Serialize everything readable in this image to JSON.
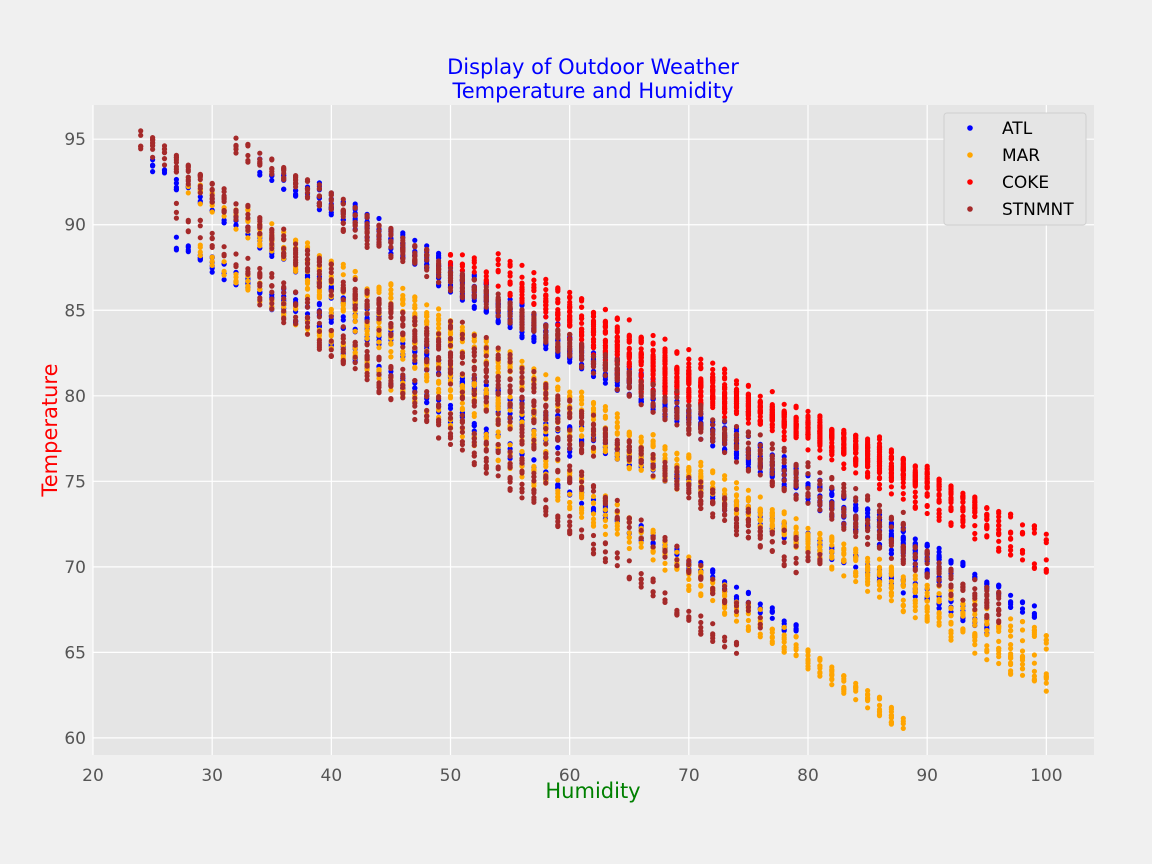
{
  "chart_data": {
    "type": "scatter",
    "title": "Display of Outdoor Weather\nTemperature and Humidity",
    "title_color": "#0000ff",
    "xlabel": "Humidity",
    "xlabel_color": "#008000",
    "ylabel": "Temperature",
    "ylabel_color": "#ff0000",
    "xlim": [
      20,
      104
    ],
    "ylim": [
      59,
      97
    ],
    "xticks": [
      20,
      30,
      40,
      50,
      60,
      70,
      80,
      90,
      100
    ],
    "yticks": [
      60,
      65,
      70,
      75,
      80,
      85,
      90,
      95
    ],
    "grid": true,
    "legend_position": "top-right",
    "plot_background": "#e5e5e5",
    "series": [
      {
        "name": "ATL",
        "color": "#0000ff",
        "bands": [
          {
            "x0": 25,
            "y0": 93.3,
            "x1": 60,
            "y1": 76.7,
            "step": 1,
            "jitter": 0.25
          },
          {
            "x0": 27,
            "y0": 89.0,
            "x1": 79,
            "y1": 66.3,
            "step": 1,
            "jitter": 0.25
          },
          {
            "x0": 34,
            "y0": 93.4,
            "x1": 91,
            "y1": 69.6,
            "step": 1,
            "jitter": 0.25
          },
          {
            "x0": 36,
            "y0": 85.9,
            "x1": 95,
            "y1": 66.6,
            "step": 1,
            "jitter": 0.25
          },
          {
            "x0": 39,
            "y0": 92.0,
            "x1": 99,
            "y1": 67.3,
            "step": 1,
            "jitter": 0.25
          },
          {
            "x0": 49,
            "y0": 86.6,
            "x1": 92,
            "y1": 70.0,
            "step": 1,
            "jitter": 0.25
          }
        ]
      },
      {
        "name": "MAR",
        "color": "#ffa500",
        "bands": [
          {
            "x0": 28,
            "y0": 92.3,
            "x1": 58,
            "y1": 77.2,
            "step": 1,
            "jitter": 0.3
          },
          {
            "x0": 29,
            "y0": 88.4,
            "x1": 88,
            "y1": 60.8,
            "step": 1,
            "jitter": 0.3
          },
          {
            "x0": 33,
            "y0": 90.4,
            "x1": 100,
            "y1": 63.0,
            "step": 1,
            "jitter": 0.3
          },
          {
            "x0": 38,
            "y0": 86.4,
            "x1": 87,
            "y1": 61.3,
            "step": 1,
            "jitter": 0.3
          },
          {
            "x0": 45,
            "y0": 86.1,
            "x1": 100,
            "y1": 63.9,
            "step": 1,
            "jitter": 0.3
          },
          {
            "x0": 50,
            "y0": 80.9,
            "x1": 100,
            "y1": 65.6,
            "step": 1,
            "jitter": 0.3
          }
        ]
      },
      {
        "name": "COKE",
        "color": "#ff0000",
        "bands": [
          {
            "x0": 50,
            "y0": 88.2,
            "x1": 100,
            "y1": 70.0,
            "step": 1,
            "jitter": 0.3
          },
          {
            "x0": 54,
            "y0": 87.8,
            "x1": 100,
            "y1": 71.5,
            "step": 1,
            "jitter": 0.3
          },
          {
            "x0": 56,
            "y0": 86.3,
            "x1": 96,
            "y1": 72.5,
            "step": 1,
            "jitter": 0.3
          },
          {
            "x0": 58,
            "y0": 85.0,
            "x1": 94,
            "y1": 73.5,
            "step": 1,
            "jitter": 0.3
          },
          {
            "x0": 60,
            "y0": 83.8,
            "x1": 92,
            "y1": 74.5,
            "step": 1,
            "jitter": 0.3
          },
          {
            "x0": 62,
            "y0": 82.6,
            "x1": 90,
            "y1": 75.3,
            "step": 1,
            "jitter": 0.3
          },
          {
            "x0": 64,
            "y0": 81.6,
            "x1": 88,
            "y1": 76.2,
            "step": 1,
            "jitter": 0.3
          },
          {
            "x0": 66,
            "y0": 80.6,
            "x1": 86,
            "y1": 77.0,
            "step": 1,
            "jitter": 0.3
          }
        ]
      },
      {
        "name": "STNMNT",
        "color": "#a52a2a",
        "bands": [
          {
            "x0": 24,
            "y0": 95.0,
            "x1": 62,
            "y1": 76.5,
            "step": 1,
            "jitter": 0.3
          },
          {
            "x0": 25,
            "y0": 94.6,
            "x1": 76,
            "y1": 66.8,
            "step": 1,
            "jitter": 0.3
          },
          {
            "x0": 27,
            "y0": 90.7,
            "x1": 58,
            "y1": 74.8,
            "step": 1,
            "jitter": 0.3
          },
          {
            "x0": 32,
            "y0": 94.6,
            "x1": 96,
            "y1": 67.2,
            "step": 1,
            "jitter": 0.3
          },
          {
            "x0": 34,
            "y0": 85.9,
            "x1": 74,
            "y1": 65.1,
            "step": 1,
            "jitter": 0.3
          },
          {
            "x0": 36,
            "y0": 93.0,
            "x1": 96,
            "y1": 68.0,
            "step": 1,
            "jitter": 0.3
          },
          {
            "x0": 41,
            "y0": 90.0,
            "x1": 88,
            "y1": 72.7,
            "step": 1,
            "jitter": 0.3
          },
          {
            "x0": 42,
            "y0": 86.0,
            "x1": 81,
            "y1": 70.4,
            "step": 1,
            "jitter": 0.3
          },
          {
            "x0": 50,
            "y0": 84.3,
            "x1": 79,
            "y1": 70.0,
            "step": 1,
            "jitter": 0.3
          }
        ]
      }
    ]
  }
}
